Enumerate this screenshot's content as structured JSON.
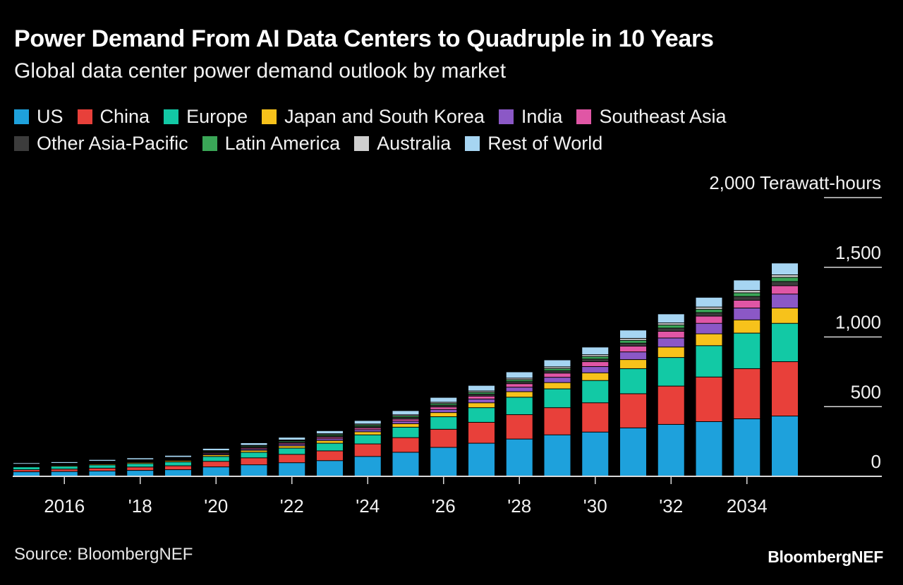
{
  "chart_data": {
    "type": "bar",
    "stacked": true,
    "title": "Power Demand From AI Data Centers to Quadruple in 10 Years",
    "subtitle": "Global data center power demand outlook by market",
    "unit_label": "2,000 Terawatt-hours",
    "ylim": [
      0,
      2000
    ],
    "yticks": [
      0,
      500,
      1000,
      1500,
      2000
    ],
    "ytick_labels": [
      "0",
      "500",
      "1,000",
      "1,500",
      "2,000 Terawatt-hours"
    ],
    "y_axis_position": "right",
    "grid": false,
    "legend_position": "top",
    "categories": [
      "2015",
      "2016",
      "2017",
      "2018",
      "2019",
      "2020",
      "2021",
      "2022",
      "2023",
      "2024",
      "2025",
      "2026",
      "2027",
      "2028",
      "2029",
      "2030",
      "2031",
      "2032",
      "2033",
      "2034",
      "2035"
    ],
    "xtick_labels": [
      "2016",
      "'18",
      "'20",
      "'22",
      "'24",
      "'26",
      "'28",
      "'30",
      "'32",
      "2034"
    ],
    "series": [
      {
        "name": "US",
        "color": "#1ea1dc",
        "values": [
          30,
          32,
          36,
          40,
          45,
          65,
          80,
          95,
          110,
          140,
          170,
          205,
          235,
          265,
          295,
          315,
          345,
          370,
          390,
          410,
          430
        ]
      },
      {
        "name": "China",
        "color": "#e8403a",
        "values": [
          15,
          17,
          20,
          24,
          28,
          40,
          50,
          60,
          70,
          90,
          105,
          130,
          150,
          175,
          195,
          210,
          245,
          275,
          320,
          360,
          390
        ]
      },
      {
        "name": "Europe",
        "color": "#12c9a5",
        "values": [
          20,
          21,
          23,
          25,
          28,
          35,
          40,
          45,
          55,
          65,
          75,
          90,
          105,
          125,
          135,
          160,
          180,
          205,
          225,
          255,
          275
        ]
      },
      {
        "name": "Japan and South Korea",
        "color": "#f7c21b",
        "values": [
          5,
          6,
          7,
          8,
          9,
          12,
          14,
          16,
          19,
          22,
          25,
          30,
          35,
          40,
          45,
          55,
          65,
          75,
          85,
          95,
          110
        ]
      },
      {
        "name": "India",
        "color": "#8b58c6",
        "values": [
          3,
          3,
          4,
          4,
          5,
          7,
          9,
          11,
          13,
          15,
          18,
          22,
          27,
          32,
          38,
          45,
          55,
          65,
          75,
          85,
          100
        ]
      },
      {
        "name": "Southeast Asia",
        "color": "#e056a5",
        "values": [
          3,
          3,
          4,
          4,
          5,
          6,
          8,
          9,
          11,
          13,
          15,
          18,
          21,
          25,
          30,
          35,
          42,
          48,
          52,
          56,
          60
        ]
      },
      {
        "name": "Other Asia-Pacific",
        "color": "#3c3c3c",
        "values": [
          4,
          4,
          5,
          5,
          6,
          7,
          8,
          9,
          10,
          11,
          12,
          13,
          14,
          15,
          17,
          19,
          21,
          23,
          25,
          27,
          30
        ]
      },
      {
        "name": "Latin America",
        "color": "#3aa657",
        "values": [
          3,
          3,
          4,
          4,
          5,
          6,
          7,
          8,
          9,
          10,
          11,
          12,
          13,
          14,
          16,
          18,
          20,
          22,
          24,
          26,
          30
        ]
      },
      {
        "name": "Australia",
        "color": "#cfcfcf",
        "values": [
          2,
          2,
          3,
          3,
          3,
          4,
          4,
          5,
          6,
          7,
          8,
          9,
          10,
          11,
          12,
          13,
          14,
          15,
          16,
          17,
          18
        ]
      },
      {
        "name": "Rest of World",
        "color": "#a6d5f2",
        "values": [
          10,
          11,
          12,
          13,
          14,
          16,
          18,
          20,
          22,
          25,
          30,
          35,
          40,
          45,
          50,
          55,
          60,
          65,
          70,
          75,
          85
        ]
      }
    ]
  },
  "source": "Source: BloombergNEF",
  "brand": "BloombergNEF"
}
